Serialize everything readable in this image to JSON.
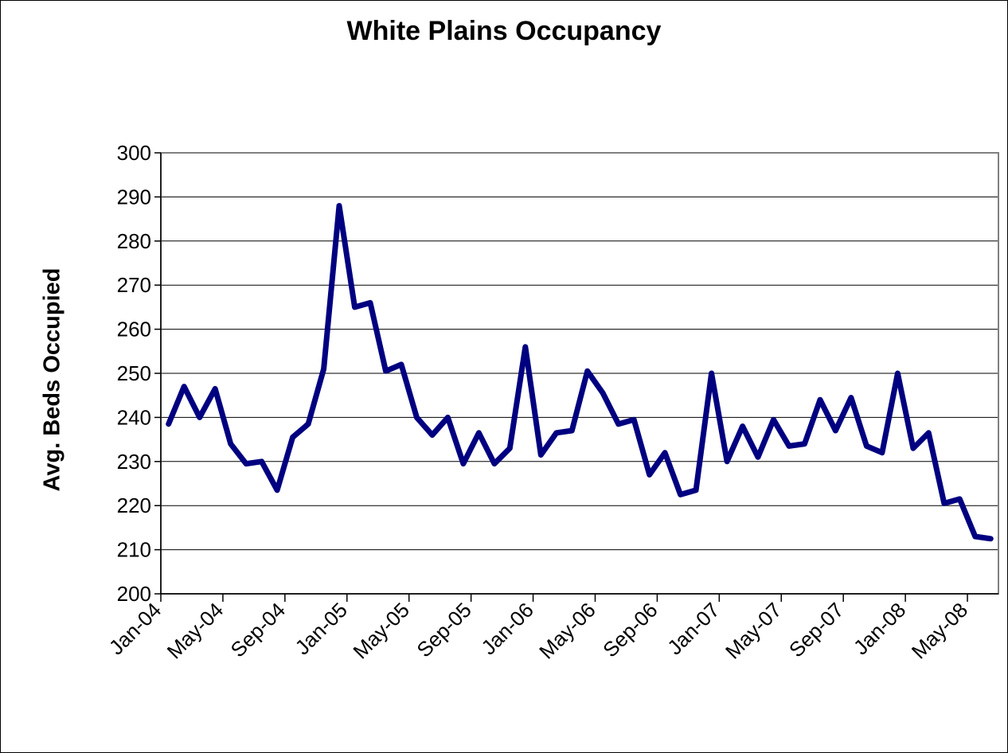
{
  "chart_data": {
    "type": "line",
    "title": "White Plains Occupancy",
    "xlabel": "",
    "ylabel": "Avg. Beds Occupied",
    "ylim": [
      200,
      300
    ],
    "yticks": [
      "200",
      "210",
      "220",
      "230",
      "240",
      "250",
      "260",
      "270",
      "280",
      "290",
      "300"
    ],
    "xtick_labels": [
      "Jan-04",
      "May-04",
      "Sep-04",
      "Jan-05",
      "May-05",
      "Sep-05",
      "Jan-06",
      "May-06",
      "Sep-06",
      "Jan-07",
      "May-07",
      "Sep-07",
      "Jan-08",
      "May-08"
    ],
    "grid": "horizontal",
    "legend": "none",
    "line_color": "#000080",
    "x": [
      "Jan-04",
      "Feb-04",
      "Mar-04",
      "Apr-04",
      "May-04",
      "Jun-04",
      "Jul-04",
      "Aug-04",
      "Sep-04",
      "Oct-04",
      "Nov-04",
      "Dec-04",
      "Jan-05",
      "Feb-05",
      "Mar-05",
      "Apr-05",
      "May-05",
      "Jun-05",
      "Jul-05",
      "Aug-05",
      "Sep-05",
      "Oct-05",
      "Nov-05",
      "Dec-05",
      "Jan-06",
      "Feb-06",
      "Mar-06",
      "Apr-06",
      "May-06",
      "Jun-06",
      "Jul-06",
      "Aug-06",
      "Sep-06",
      "Oct-06",
      "Nov-06",
      "Dec-06",
      "Jan-07",
      "Feb-07",
      "Mar-07",
      "Apr-07",
      "May-07",
      "Jun-07",
      "Jul-07",
      "Aug-07",
      "Sep-07",
      "Oct-07",
      "Nov-07",
      "Dec-07",
      "Jan-08",
      "Feb-08",
      "Mar-08",
      "Apr-08",
      "May-08",
      "Jun-08"
    ],
    "series": [
      {
        "values": [
          238.5,
          247,
          240,
          246.5,
          234,
          229.5,
          230,
          223.5,
          235.5,
          238.5,
          251,
          288,
          265,
          266,
          250.5,
          252,
          240,
          236,
          240,
          229.5,
          236.5,
          229.5,
          233,
          256,
          231.5,
          236.5,
          237,
          250.5,
          245.5,
          238.5,
          239.5,
          227,
          232,
          222.5,
          223.5,
          250,
          230,
          238,
          231,
          239.5,
          233.5,
          234,
          244,
          237,
          244.5,
          233.5,
          232,
          250,
          233,
          236.5,
          220.5,
          221.5,
          213,
          212.5
        ]
      }
    ]
  }
}
